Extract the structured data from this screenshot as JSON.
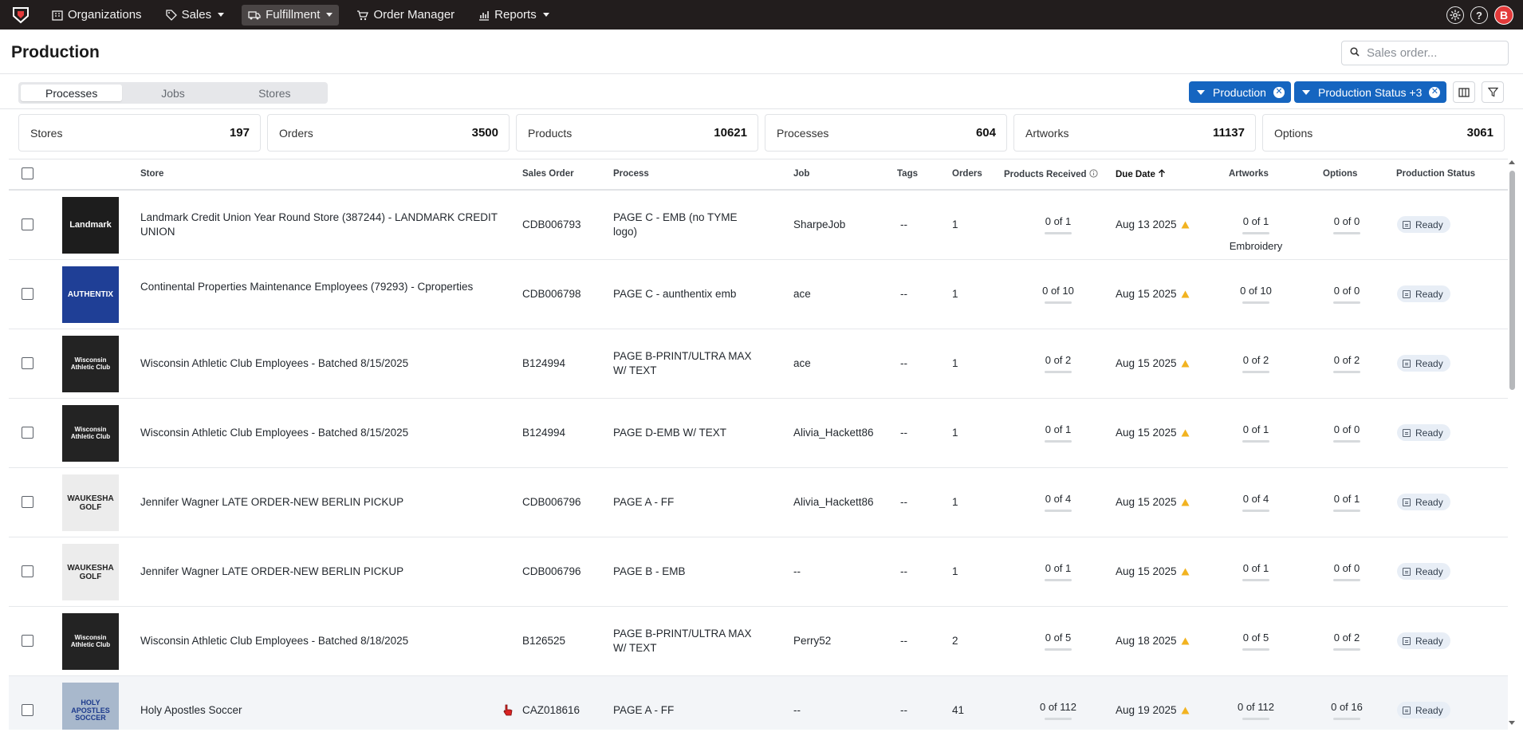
{
  "nav": {
    "items": [
      {
        "label": "Organizations",
        "icon": "building-icon",
        "caret": false
      },
      {
        "label": "Sales",
        "icon": "tag-icon",
        "caret": true
      },
      {
        "label": "Fulfillment",
        "icon": "truck-icon",
        "caret": true,
        "active": true
      },
      {
        "label": "Order Manager",
        "icon": "cart-icon",
        "caret": false
      },
      {
        "label": "Reports",
        "icon": "chart-icon",
        "caret": true
      }
    ],
    "avatar_initial": "B",
    "help_label": "?"
  },
  "page": {
    "title": "Production"
  },
  "search": {
    "placeholder": "Sales order..."
  },
  "tabs": [
    {
      "label": "Processes",
      "active": true
    },
    {
      "label": "Jobs",
      "active": false
    },
    {
      "label": "Stores",
      "active": false
    }
  ],
  "filters": [
    {
      "label": "Production"
    },
    {
      "label": "Production Status +3"
    }
  ],
  "stats": [
    {
      "label": "Stores",
      "value": "197"
    },
    {
      "label": "Orders",
      "value": "3500"
    },
    {
      "label": "Products",
      "value": "10621"
    },
    {
      "label": "Processes",
      "value": "604"
    },
    {
      "label": "Artworks",
      "value": "11137"
    },
    {
      "label": "Options",
      "value": "3061"
    }
  ],
  "table": {
    "columns": {
      "store": "Store",
      "sales_order": "Sales Order",
      "process": "Process",
      "job": "Job",
      "tags": "Tags",
      "orders": "Orders",
      "products_received": "Products Received",
      "due_date": "Due Date",
      "artworks": "Artworks",
      "options": "Options",
      "production_status": "Production Status"
    },
    "rows": [
      {
        "thumb": "Landmark",
        "store": "Landmark Credit Union Year Round Store (387244) - LANDMARK CREDIT UNION",
        "sales_order": "CDB006793",
        "process": "PAGE C - EMB (no TYME logo)",
        "job": "SharpeJob",
        "tags": "--",
        "orders": "1",
        "products_received": "0 of 1",
        "due_date": "Aug 13 2025",
        "artworks": "0 of 1",
        "artwork_note": "Embroidery",
        "options": "0 of 0",
        "status": "Ready"
      },
      {
        "thumb": "AUTHENTIX",
        "store": "Continental Properties Maintenance Employees (79293) - Cproperties",
        "sales_order": "CDB006798",
        "process": "PAGE C - aunthentix emb",
        "job": "ace",
        "tags": "--",
        "orders": "1",
        "products_received": "0 of 10",
        "due_date": "Aug 15 2025",
        "artworks": "0 of 10",
        "options": "0 of 0",
        "status": "Ready"
      },
      {
        "thumb": "Wisconsin Athletic Club",
        "store": "Wisconsin Athletic Club Employees - Batched 8/15/2025",
        "sales_order": "B124994",
        "process": "PAGE B-PRINT/ULTRA MAX W/ TEXT",
        "job": "ace",
        "tags": "--",
        "orders": "1",
        "products_received": "0 of 2",
        "due_date": "Aug 15 2025",
        "artworks": "0 of 2",
        "options": "0 of 2",
        "status": "Ready"
      },
      {
        "thumb": "Wisconsin Athletic Club",
        "store": "Wisconsin Athletic Club Employees - Batched 8/15/2025",
        "sales_order": "B124994",
        "process": "PAGE D-EMB W/ TEXT",
        "job": "Alivia_Hackett86",
        "tags": "--",
        "orders": "1",
        "products_received": "0 of 1",
        "due_date": "Aug 15 2025",
        "artworks": "0 of 1",
        "options": "0 of 0",
        "status": "Ready"
      },
      {
        "thumb": "WAUKESHA GOLF",
        "store": "Jennifer Wagner LATE ORDER-NEW BERLIN PICKUP",
        "sales_order": "CDB006796",
        "process": "PAGE A - FF",
        "job": "Alivia_Hackett86",
        "tags": "--",
        "orders": "1",
        "products_received": "0 of 4",
        "due_date": "Aug 15 2025",
        "artworks": "0 of 4",
        "options": "0 of 1",
        "status": "Ready"
      },
      {
        "thumb": "WAUKESHA GOLF",
        "store": "Jennifer Wagner LATE ORDER-NEW BERLIN PICKUP",
        "sales_order": "CDB006796",
        "process": "PAGE B - EMB",
        "job": "--",
        "tags": "--",
        "orders": "1",
        "products_received": "0 of 1",
        "due_date": "Aug 15 2025",
        "artworks": "0 of 1",
        "options": "0 of 0",
        "status": "Ready"
      },
      {
        "thumb": "Wisconsin Athletic Club",
        "store": "Wisconsin Athletic Club Employees - Batched 8/18/2025",
        "sales_order": "B126525",
        "process": "PAGE B-PRINT/ULTRA MAX W/ TEXT",
        "job": "Perry52",
        "tags": "--",
        "orders": "2",
        "products_received": "0 of 5",
        "due_date": "Aug 18 2025",
        "artworks": "0 of 5",
        "options": "0 of 2",
        "status": "Ready"
      },
      {
        "thumb": "HOLY APOSTLES SOCCER",
        "store": "Holy Apostles Soccer",
        "sales_order": "CAZ018616",
        "process": "PAGE A - FF",
        "job": "--",
        "tags": "--",
        "orders": "41",
        "products_received": "0 of 112",
        "due_date": "Aug 19 2025",
        "artworks": "0 of 112",
        "options": "0 of 16",
        "status": "Ready"
      }
    ]
  },
  "colors": {
    "nav_bg": "#221d1d",
    "accent": "#1565c0",
    "warning": "#f2b320",
    "status_bg": "#e8eef6"
  }
}
